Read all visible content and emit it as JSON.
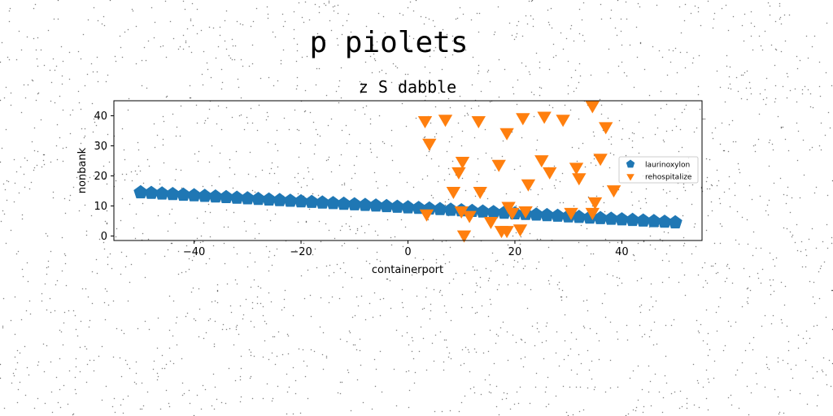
{
  "suptitle": "p piolets",
  "chart_data": {
    "type": "scatter",
    "title": "z S dabble",
    "xlabel": "containerport",
    "ylabel": "nonbank",
    "xlim": [
      -55,
      55
    ],
    "ylim": [
      -1.5,
      45
    ],
    "xticks": [
      -40,
      -20,
      0,
      20,
      40
    ],
    "xtick_labels": [
      "−40",
      "−20",
      "0",
      "20",
      "40"
    ],
    "yticks": [
      0,
      10,
      20,
      30,
      40
    ],
    "ytick_labels": [
      "0",
      "10",
      "20",
      "30",
      "40"
    ],
    "grid": false,
    "legend_position": "center-right",
    "series": [
      {
        "name": "laurinoxylon",
        "marker": "pentagon",
        "color": "#1f77b4",
        "x": [
          -50,
          -48,
          -46,
          -44,
          -42,
          -40,
          -38,
          -36,
          -34,
          -32,
          -30,
          -28,
          -26,
          -24,
          -22,
          -20,
          -18,
          -16,
          -14,
          -12,
          -10,
          -8,
          -6,
          -4,
          -2,
          0,
          2,
          4,
          6,
          8,
          10,
          12,
          14,
          16,
          18,
          20,
          22,
          24,
          26,
          28,
          30,
          32,
          34,
          36,
          38,
          40,
          42,
          44,
          46,
          48,
          50
        ],
        "y": [
          14.5,
          14.3,
          14.1,
          13.9,
          13.7,
          13.5,
          13.3,
          13.1,
          12.9,
          12.7,
          12.5,
          12.3,
          12.1,
          11.9,
          11.7,
          11.5,
          11.3,
          11.1,
          10.9,
          10.7,
          10.5,
          10.3,
          10.1,
          9.9,
          9.7,
          9.5,
          9.3,
          9.1,
          8.9,
          8.7,
          8.5,
          8.3,
          8.1,
          7.9,
          7.7,
          7.5,
          7.3,
          7.1,
          6.9,
          6.7,
          6.5,
          6.3,
          6.1,
          5.9,
          5.7,
          5.5,
          5.3,
          5.1,
          4.9,
          4.7,
          4.5
        ]
      },
      {
        "name": "rehospitalize",
        "marker": "triangle_down",
        "color": "#ff7f0e",
        "x": [
          3.2,
          4.0,
          7.0,
          3.5,
          13.2,
          18.5,
          21.5,
          25.5,
          29.0,
          34.5,
          37.0,
          10.2,
          9.5,
          17.0,
          25.0,
          36.0,
          8.5,
          13.5,
          22.5,
          26.5,
          31.5,
          32.0,
          38.5,
          18.8,
          35.0,
          10.0,
          11.5,
          15.5,
          19.5,
          22.0,
          30.5,
          34.5,
          10.5,
          17.5,
          18.5,
          21.0
        ],
        "y": [
          38.5,
          31.0,
          39.0,
          7.5,
          38.5,
          34.5,
          39.5,
          40.0,
          39.0,
          43.5,
          36.5,
          25.0,
          21.5,
          24.0,
          25.5,
          26.0,
          15.0,
          15.0,
          17.5,
          21.5,
          23.0,
          19.5,
          15.5,
          10.0,
          11.5,
          8.5,
          7.0,
          5.0,
          8.0,
          8.5,
          8.0,
          8.0,
          0.5,
          2.0,
          2.0,
          2.5
        ]
      }
    ]
  }
}
